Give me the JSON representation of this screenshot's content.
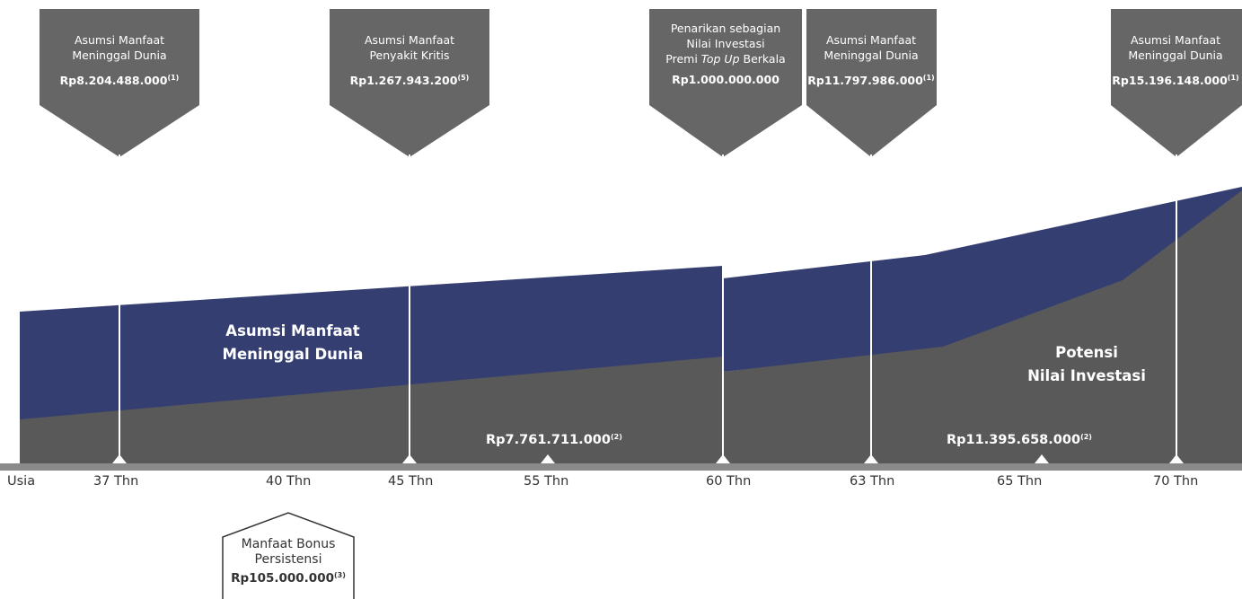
{
  "axis": {
    "start_label": "Usia",
    "ages": [
      "37 Thn",
      "40 Thn",
      "45 Thn",
      "55 Thn",
      "60 Thn",
      "63 Thn",
      "65 Thn",
      "70 Thn"
    ]
  },
  "callouts": [
    {
      "line1": "Asumsi Manfaat",
      "line2": "Meninggal Dunia",
      "value": "Rp8.204.488.000",
      "note": "(1)"
    },
    {
      "line1": "Asumsi Manfaat",
      "line2": "Penyakit Kritis",
      "value": "Rp1.267.943.200",
      "note": "(5)"
    },
    {
      "line1": "Penarikan sebagian",
      "line2": "Nilai Investasi",
      "line3_pre": "Premi ",
      "line3_em": "Top Up",
      "line3_post": " Berkala",
      "value": "Rp1.000.000.000",
      "note": ""
    },
    {
      "line1": "Asumsi Manfaat",
      "line2": "Meninggal Dunia",
      "value": "Rp11.797.986.000",
      "note": "(1)"
    },
    {
      "line1": "Asumsi Manfaat",
      "line2": "Meninggal Dunia",
      "value": "Rp15.196.148.000",
      "note": "(1)"
    }
  ],
  "areas": {
    "death_benefit": {
      "line1": "Asumsi Manfaat",
      "line2": "Meninggal Dunia",
      "color": "#343e70"
    },
    "investment": {
      "line1": "Potensi",
      "line2": "Nilai Investasi",
      "color": "#595959"
    }
  },
  "investment_values": [
    {
      "value": "Rp7.761.711.000",
      "note": "(2)"
    },
    {
      "value": "Rp11.395.658.000",
      "note": "(2)"
    }
  ],
  "bonus": {
    "line1": "Manfaat Bonus",
    "line2": "Persistensi",
    "value": "Rp105.000.000",
    "note": "(3)"
  },
  "colors": {
    "callout": "#666666",
    "axis": "#8a8a8a",
    "text": "#333333",
    "line": "#ffffff"
  }
}
